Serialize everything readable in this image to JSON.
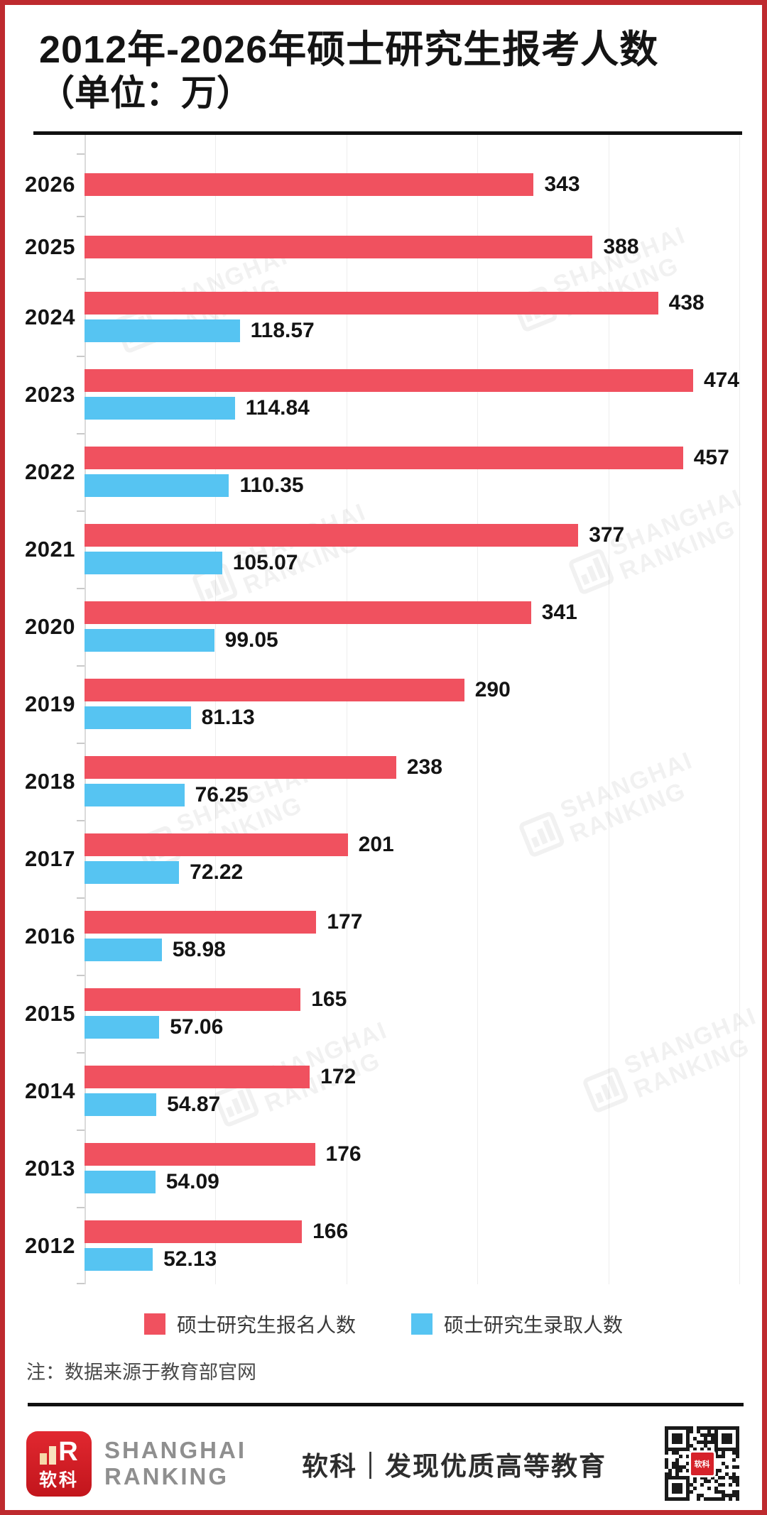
{
  "title": {
    "line1": "2012年-2026年硕士研究生报考人数",
    "line2": "（单位：万）"
  },
  "chart_data": {
    "type": "bar",
    "orientation": "horizontal",
    "unit": "万",
    "categories": [
      "2026",
      "2025",
      "2024",
      "2023",
      "2022",
      "2021",
      "2020",
      "2019",
      "2018",
      "2017",
      "2016",
      "2015",
      "2014",
      "2013",
      "2012"
    ],
    "series": [
      {
        "name": "硕士研究生报名人数",
        "color": "#F0515F",
        "values": [
          343,
          388,
          438,
          474,
          457,
          377,
          341,
          290,
          238,
          201,
          177,
          165,
          172,
          176,
          166
        ]
      },
      {
        "name": "硕士研究生录取人数",
        "color": "#56C4F2",
        "values": [
          null,
          null,
          118.57,
          114.84,
          110.35,
          105.07,
          99.05,
          81.13,
          76.25,
          72.22,
          58.98,
          57.06,
          54.87,
          54.09,
          52.13
        ]
      }
    ],
    "xlim": [
      0,
      500
    ],
    "gridlines": [
      100,
      200,
      300,
      400,
      500
    ],
    "grid": true,
    "legend_position": "bottom",
    "value_labels": true
  },
  "watermark": {
    "line1": "SHANGHAI",
    "line2": "RANKING"
  },
  "note": {
    "text": "注：数据来源于教育部官网"
  },
  "footer": {
    "logo_icon": "shanghairanking-logo",
    "logo_text": "软科",
    "logo_glyph_letter": "R",
    "brand_line1": "SHANGHAI",
    "brand_line2": "RANKING",
    "tagline": "软科｜发现优质高等教育",
    "qr_icon": "qr-code"
  },
  "colors": {
    "bar_applicants": "#F0515F",
    "bar_admitted": "#56C4F2",
    "frame_border": "#BE2A2E",
    "rule": "#101010",
    "badge_red": "#D6222A"
  }
}
